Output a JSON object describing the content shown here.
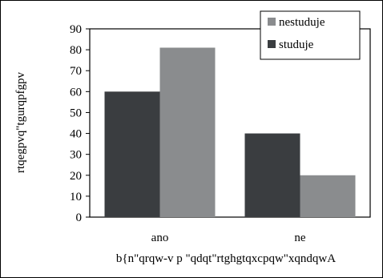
{
  "chart_data": {
    "type": "bar",
    "categories": [
      "ano",
      "ne"
    ],
    "series": [
      {
        "name": "studuje",
        "values": [
          60,
          40
        ],
        "color": "#3a3d40"
      },
      {
        "name": "nestuduje",
        "values": [
          81,
          20
        ],
        "color": "#8a8c8e"
      }
    ],
    "xlabel": "b{n\"qrqw-v p \"qdqt\"rtghgtqxcpqw\"xqndqwA",
    "ylabel": "rtqegpvq\"tgurqpfgpv",
    "ylim": [
      0,
      90
    ],
    "yticks": [
      "0",
      "10",
      "20",
      "30",
      "40",
      "50",
      "60",
      "70",
      "80",
      "90"
    ],
    "grid": false,
    "legend": {
      "placement": "top-right",
      "order": [
        "nestuduje",
        "studuje"
      ]
    }
  }
}
